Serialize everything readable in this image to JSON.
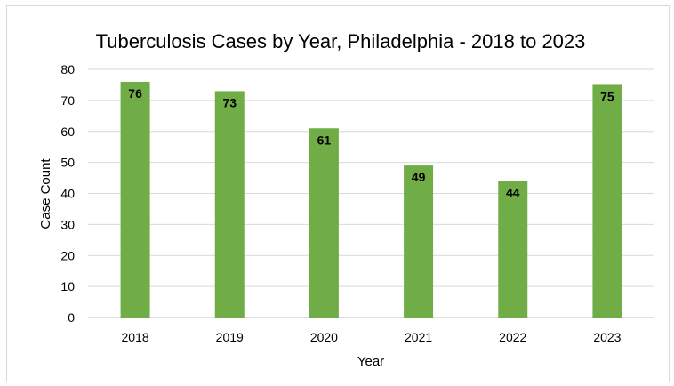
{
  "chart_data": {
    "type": "bar",
    "title": "Tuberculosis Cases by Year, Philadelphia - 2018 to 2023",
    "xlabel": "Year",
    "ylabel": "Case Count",
    "categories": [
      "2018",
      "2019",
      "2020",
      "2021",
      "2022",
      "2023"
    ],
    "values": [
      76,
      73,
      61,
      49,
      44,
      75
    ],
    "data_labels": [
      "76",
      "73",
      "61",
      "49",
      "44",
      "75"
    ],
    "ylim": [
      0,
      80
    ],
    "yticks": [
      "0",
      "10",
      "20",
      "30",
      "40",
      "50",
      "60",
      "70",
      "80"
    ],
    "grid": true,
    "legend": "none",
    "bar_color": "#70ad47"
  }
}
